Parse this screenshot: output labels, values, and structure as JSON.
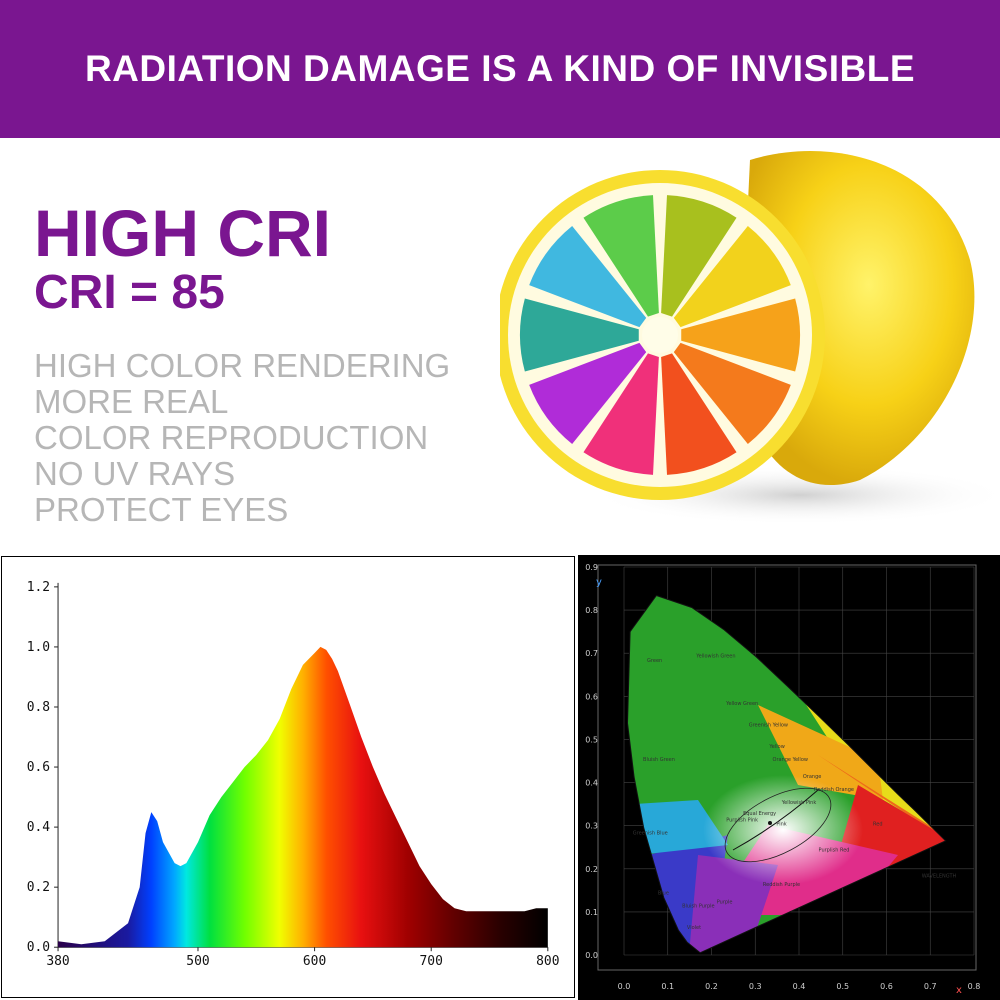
{
  "banner": {
    "title": "RADIATION DAMAGE IS A KIND OF INVISIBLE"
  },
  "hero": {
    "headline": "HIGH CRI",
    "subheadline": "CRI = 85",
    "features": [
      "HIGH COLOR RENDERING",
      "MORE REAL",
      "COLOR REPRODUCTION",
      "NO UV RAYS",
      "PROTECT EYES"
    ]
  },
  "colors": {
    "brand_purple": "#7a1690",
    "feature_gray": "#b6b6b6"
  },
  "spectrum": {
    "y_ticks": [
      "1.2",
      "1.0",
      "0.8",
      "0.6",
      "0.4",
      "0.2",
      "0.0"
    ],
    "x_ticks": [
      "380",
      "500",
      "600",
      "700",
      "800"
    ]
  },
  "chart_data": [
    {
      "type": "area",
      "x": [
        380,
        400,
        420,
        440,
        450,
        455,
        460,
        465,
        470,
        480,
        485,
        490,
        500,
        510,
        520,
        530,
        540,
        550,
        560,
        570,
        580,
        590,
        600,
        605,
        610,
        615,
        620,
        630,
        640,
        650,
        660,
        670,
        680,
        690,
        700,
        710,
        720,
        730,
        740,
        750,
        760,
        770,
        780,
        790,
        800
      ],
      "y": [
        0.02,
        0.01,
        0.02,
        0.08,
        0.2,
        0.38,
        0.45,
        0.42,
        0.35,
        0.28,
        0.27,
        0.28,
        0.35,
        0.44,
        0.5,
        0.55,
        0.6,
        0.64,
        0.69,
        0.76,
        0.86,
        0.94,
        0.98,
        1.0,
        0.99,
        0.96,
        0.92,
        0.81,
        0.7,
        0.6,
        0.51,
        0.43,
        0.35,
        0.27,
        0.21,
        0.16,
        0.13,
        0.12,
        0.12,
        0.12,
        0.12,
        0.12,
        0.12,
        0.13,
        0.13
      ],
      "xlim": [
        380,
        800
      ],
      "ylim": [
        0,
        1.2
      ]
    },
    {
      "type": "scatter",
      "x_ticks": [
        "0.0",
        "0.1",
        "0.2",
        "0.3",
        "0.4",
        "0.5",
        "0.6",
        "0.7",
        "0.8"
      ],
      "y_ticks": [
        "0.9",
        "0.8",
        "0.7",
        "0.6",
        "0.5",
        "0.4",
        "0.3",
        "0.2",
        "0.1",
        "0.0"
      ],
      "xlabel": "x",
      "ylabel": "y",
      "xlim": [
        0,
        0.8
      ],
      "ylim": [
        0,
        0.9
      ],
      "regions": [
        "Green",
        "Yellowish Green",
        "Yellow Green",
        "Greenish Yellow",
        "Yellow",
        "Orange Yellow",
        "Orange",
        "Reddish Orange",
        "Red",
        "Purplish Pink",
        "Pink",
        "Yellowish Pink",
        "Purplish Red",
        "Reddish Purple",
        "Purple",
        "Bluish Purple",
        "Violet",
        "Blue",
        "Greenish Blue",
        "Bluish Green",
        "Equal Energy",
        "WAVELENGTH"
      ]
    }
  ]
}
